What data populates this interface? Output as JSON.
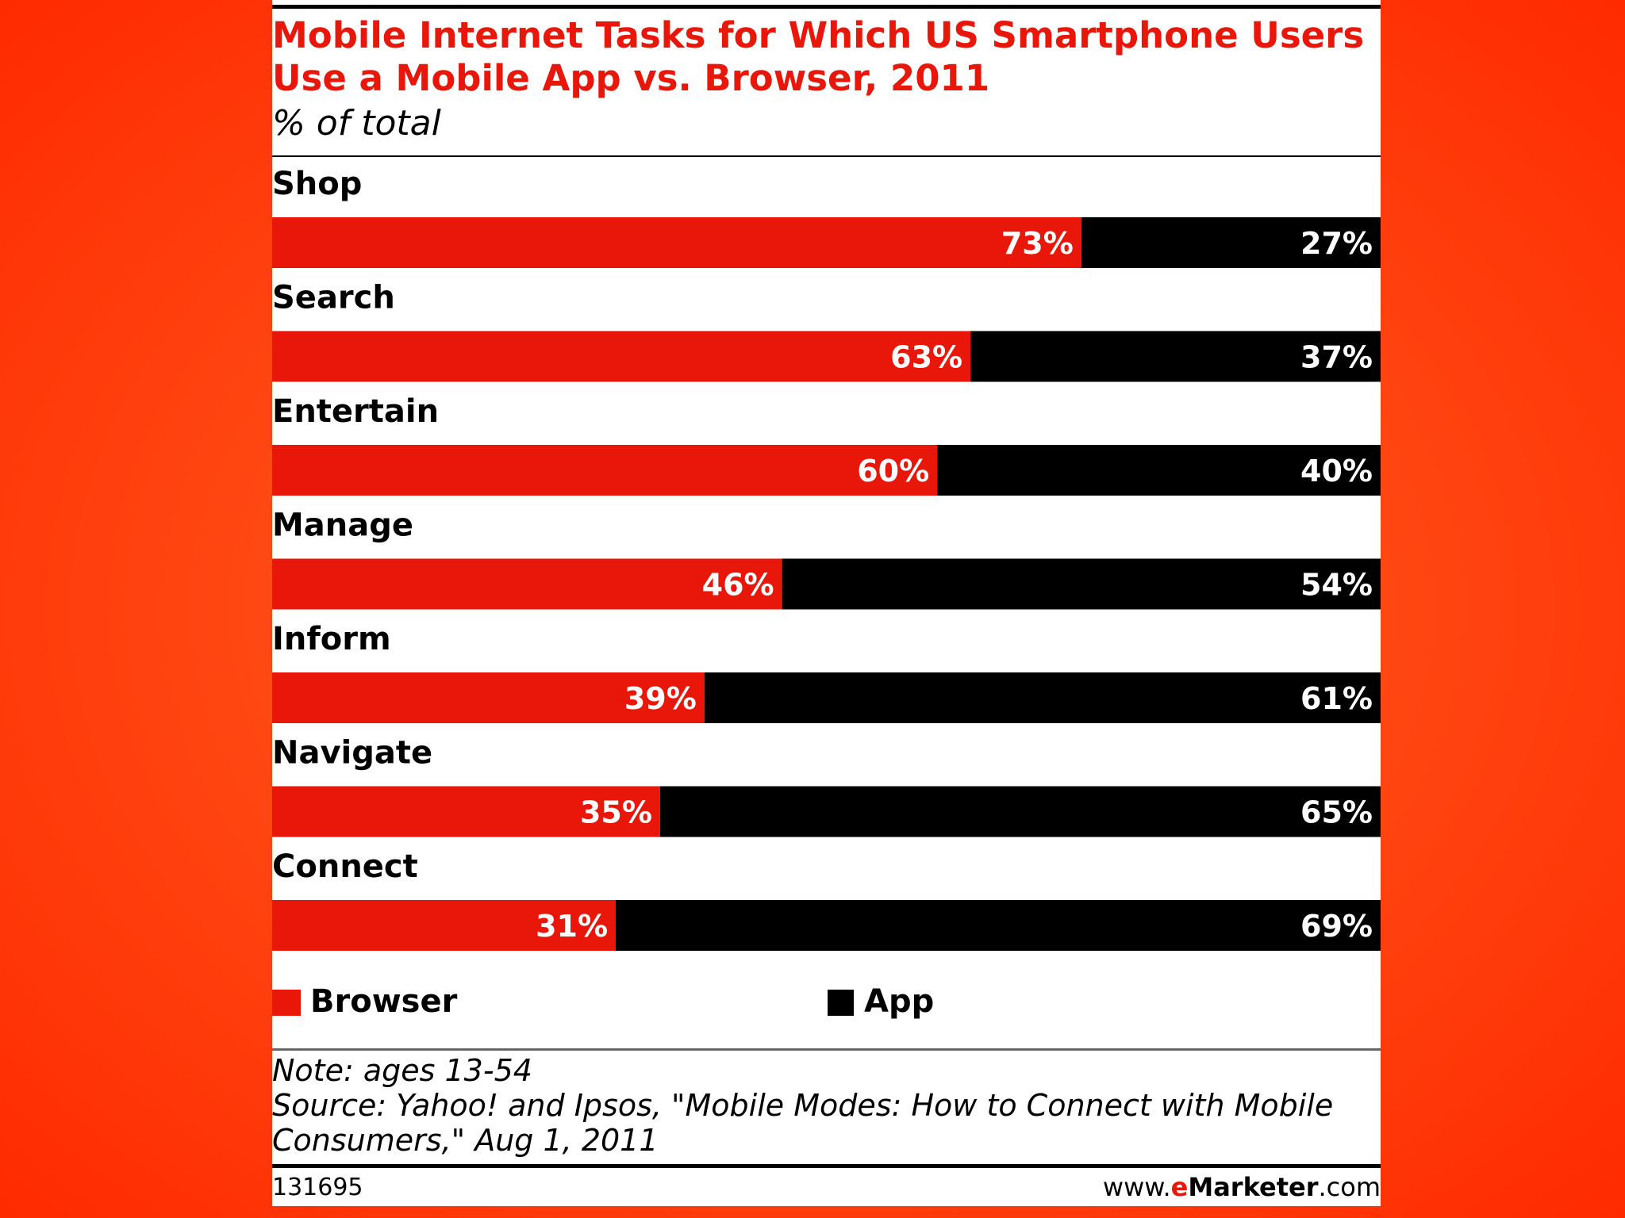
{
  "title": "Mobile Internet Tasks for Which US Smartphone Users Use a Mobile App vs. Browser, 2011",
  "subtitle": "% of total",
  "note": "Note: ages 13-54",
  "source": "Source: Yahoo! and Ipsos, \"Mobile Modes: How to Connect with Mobile Consumers,\" Aug 1, 2011",
  "chart_id": "131695",
  "site": {
    "prefix": "www.",
    "brand_e": "e",
    "brand_rest": "Marketer",
    "suffix": ".com"
  },
  "colors": {
    "browser": "#e8170a",
    "app": "#000000",
    "label_text": "#ffffff"
  },
  "chart_data": {
    "type": "bar",
    "orientation": "horizontal",
    "stacked": true,
    "title": "Mobile Internet Tasks for Which US Smartphone Users Use a Mobile App vs. Browser, 2011",
    "subtitle": "% of total",
    "categories": [
      "Shop",
      "Search",
      "Entertain",
      "Manage",
      "Inform",
      "Navigate",
      "Connect"
    ],
    "series": [
      {
        "name": "Browser",
        "values": [
          73,
          63,
          60,
          46,
          39,
          35,
          31
        ]
      },
      {
        "name": "App",
        "values": [
          27,
          37,
          40,
          54,
          61,
          65,
          69
        ]
      }
    ],
    "unit": "%",
    "xlim": [
      0,
      100
    ],
    "legend": "bottom",
    "grid": false
  }
}
